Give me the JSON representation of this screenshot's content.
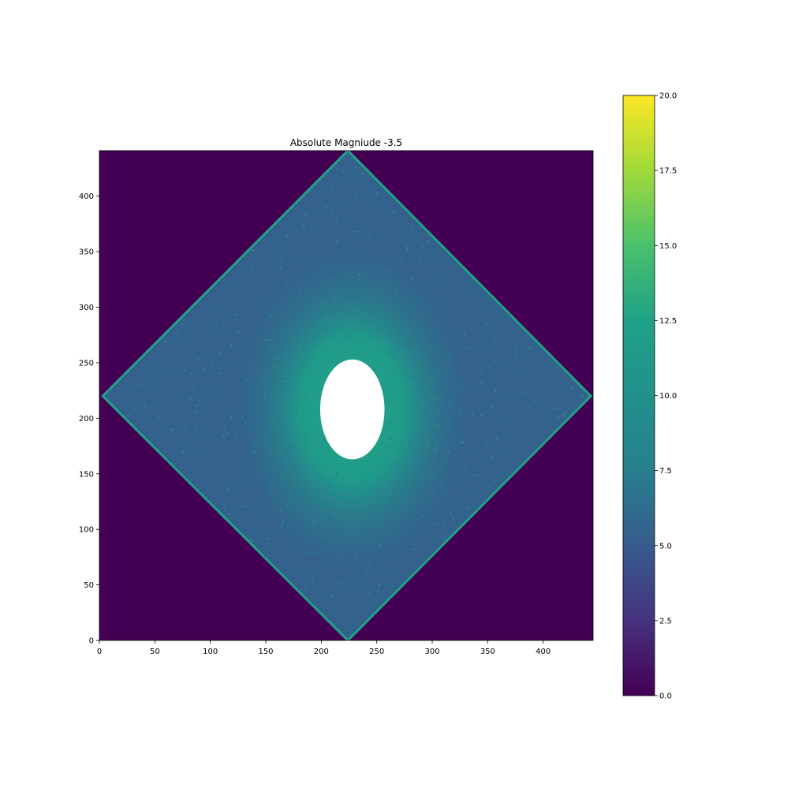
{
  "chart_data": {
    "type": "heatmap",
    "title": "Absolute Magniude -3.5",
    "xlabel": "",
    "ylabel": "",
    "xlim": [
      0,
      445
    ],
    "ylim": [
      0,
      441
    ],
    "xticks": [
      0,
      50,
      100,
      150,
      200,
      250,
      300,
      350,
      400
    ],
    "yticks": [
      0,
      50,
      100,
      150,
      200,
      250,
      300,
      350,
      400
    ],
    "colormap": "viridis",
    "colorbar": {
      "vmin": 0.0,
      "vmax": 20.0,
      "ticks": [
        "0.0",
        "2.5",
        "5.0",
        "7.5",
        "10.0",
        "12.5",
        "15.0",
        "17.5",
        "20.0"
      ]
    },
    "background_value": 0.0,
    "footprint": {
      "shape": "diamond",
      "vertices": [
        [
          224,
          441
        ],
        [
          443,
          220
        ],
        [
          224,
          0
        ],
        [
          3,
          220
        ]
      ],
      "typical_value_edges": 6.0,
      "typical_value_center": 12.5
    },
    "saturated_core": {
      "center": [
        228,
        208
      ],
      "semi_axes": [
        29,
        45
      ],
      "color": "#ffffff"
    },
    "grid": false,
    "legend": "none"
  }
}
